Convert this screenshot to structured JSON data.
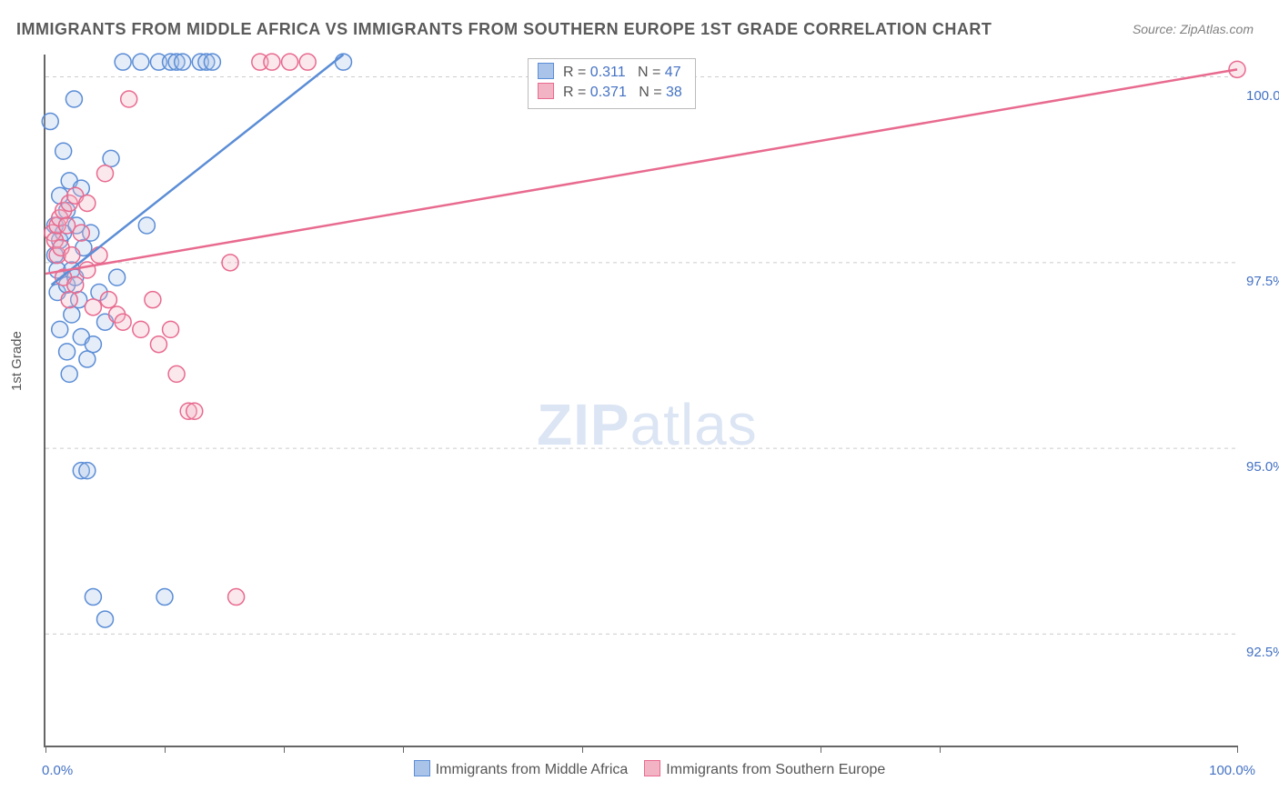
{
  "title": "IMMIGRANTS FROM MIDDLE AFRICA VS IMMIGRANTS FROM SOUTHERN EUROPE 1ST GRADE CORRELATION CHART",
  "source": "Source: ZipAtlas.com",
  "ylabel": "1st Grade",
  "watermark_a": "ZIP",
  "watermark_b": "atlas",
  "chart": {
    "type": "scatter",
    "background_color": "#ffffff",
    "grid_color": "#cccccc",
    "axis_color": "#666666",
    "xlim": [
      0,
      100
    ],
    "ylim": [
      91.0,
      100.3
    ],
    "x_ticks": [
      0,
      10,
      20,
      30,
      45,
      65,
      75,
      100
    ],
    "x_tick_labels": {
      "0": "0.0%",
      "100": "100.0%"
    },
    "y_gridlines": [
      92.5,
      95.0,
      97.5,
      100.0
    ],
    "y_tick_labels": [
      "92.5%",
      "95.0%",
      "97.5%",
      "100.0%"
    ],
    "marker_radius": 9,
    "marker_stroke_width": 1.5,
    "marker_fill_opacity": 0.3,
    "line_width": 2.5,
    "tick_label_color": "#4472c4",
    "tick_label_fontsize": 15
  },
  "series": [
    {
      "id": "middle_africa",
      "label": "Immigrants from Middle Africa",
      "color": "#5b8dd6",
      "fill": "#a9c4e8",
      "R": "0.311",
      "N": "47",
      "trend": {
        "x1": 0.5,
        "y1": 97.2,
        "x2": 25.0,
        "y2": 100.3
      },
      "points": [
        [
          0.4,
          99.4
        ],
        [
          0.8,
          98.0
        ],
        [
          0.8,
          97.6
        ],
        [
          1.0,
          97.1
        ],
        [
          1.0,
          97.4
        ],
        [
          1.2,
          97.8
        ],
        [
          1.2,
          98.4
        ],
        [
          1.2,
          96.6
        ],
        [
          1.5,
          97.9
        ],
        [
          1.5,
          99.0
        ],
        [
          1.8,
          98.2
        ],
        [
          1.8,
          97.2
        ],
        [
          1.8,
          96.3
        ],
        [
          2.0,
          96.0
        ],
        [
          2.0,
          98.6
        ],
        [
          2.2,
          97.4
        ],
        [
          2.2,
          96.8
        ],
        [
          2.4,
          99.7
        ],
        [
          2.5,
          97.3
        ],
        [
          2.6,
          98.0
        ],
        [
          2.8,
          97.0
        ],
        [
          3.0,
          98.5
        ],
        [
          3.0,
          96.5
        ],
        [
          3.0,
          94.7
        ],
        [
          3.2,
          97.7
        ],
        [
          3.5,
          96.2
        ],
        [
          3.5,
          94.7
        ],
        [
          3.8,
          97.9
        ],
        [
          4.0,
          96.4
        ],
        [
          4.0,
          93.0
        ],
        [
          4.5,
          97.1
        ],
        [
          5.0,
          92.7
        ],
        [
          5.0,
          96.7
        ],
        [
          5.5,
          98.9
        ],
        [
          6.0,
          97.3
        ],
        [
          6.5,
          100.2
        ],
        [
          8.0,
          100.2
        ],
        [
          8.5,
          98.0
        ],
        [
          9.5,
          100.2
        ],
        [
          10.0,
          93.0
        ],
        [
          10.5,
          100.2
        ],
        [
          11.0,
          100.2
        ],
        [
          11.5,
          100.2
        ],
        [
          13.0,
          100.2
        ],
        [
          13.5,
          100.2
        ],
        [
          14.0,
          100.2
        ],
        [
          25.0,
          100.2
        ]
      ]
    },
    {
      "id": "southern_europe",
      "label": "Immigrants from Southern Europe",
      "color": "#e86a8f",
      "fill": "#f2b3c4",
      "R": "0.371",
      "N": "38",
      "trend": {
        "x1": 0.0,
        "y1": 97.35,
        "x2": 100.0,
        "y2": 100.1
      },
      "points": [
        [
          0.6,
          97.9
        ],
        [
          0.8,
          97.8
        ],
        [
          1.0,
          98.0
        ],
        [
          1.0,
          97.6
        ],
        [
          1.2,
          98.1
        ],
        [
          1.3,
          97.7
        ],
        [
          1.5,
          98.2
        ],
        [
          1.5,
          97.3
        ],
        [
          1.8,
          98.0
        ],
        [
          2.0,
          98.3
        ],
        [
          2.0,
          97.0
        ],
        [
          2.2,
          97.6
        ],
        [
          2.5,
          98.4
        ],
        [
          2.5,
          97.2
        ],
        [
          3.0,
          97.9
        ],
        [
          3.5,
          97.4
        ],
        [
          3.5,
          98.3
        ],
        [
          4.0,
          96.9
        ],
        [
          4.5,
          97.6
        ],
        [
          5.0,
          98.7
        ],
        [
          5.3,
          97.0
        ],
        [
          6.0,
          96.8
        ],
        [
          6.5,
          96.7
        ],
        [
          7.0,
          99.7
        ],
        [
          8.0,
          96.6
        ],
        [
          9.0,
          97.0
        ],
        [
          9.5,
          96.4
        ],
        [
          10.5,
          96.6
        ],
        [
          11.0,
          96.0
        ],
        [
          12.0,
          95.5
        ],
        [
          12.5,
          95.5
        ],
        [
          15.5,
          97.5
        ],
        [
          16.0,
          93.0
        ],
        [
          18.0,
          100.2
        ],
        [
          19.0,
          100.2
        ],
        [
          20.5,
          100.2
        ],
        [
          22.0,
          100.2
        ],
        [
          100.0,
          100.1
        ]
      ]
    }
  ],
  "stats_labels": {
    "R": "R =",
    "N": "N ="
  }
}
